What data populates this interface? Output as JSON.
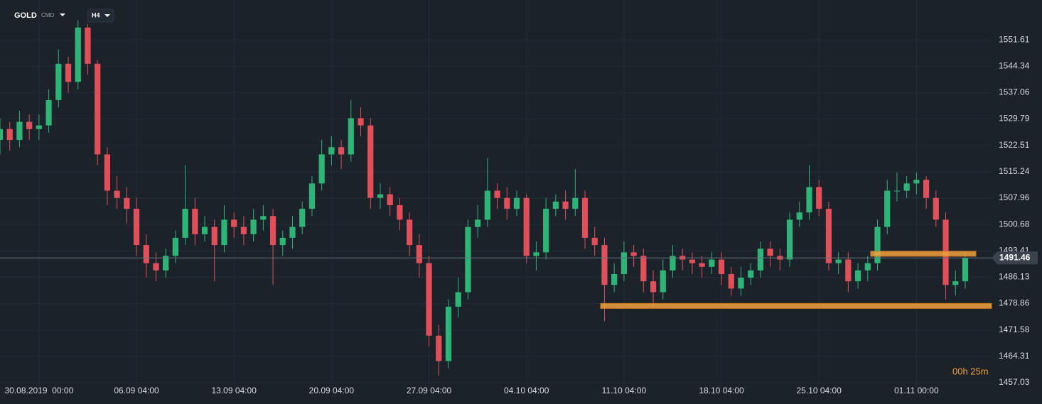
{
  "header": {
    "symbol": "GOLD",
    "symbol_type": "CMD",
    "timeframe": "H4"
  },
  "countdown": "00h 25m",
  "chart_data": {
    "type": "candlestick",
    "open": [
      1524,
      1527,
      1524,
      1529,
      1527,
      1528,
      1535,
      1545,
      1540,
      1555,
      1545,
      1520,
      1510,
      1508,
      1505,
      1495,
      1490,
      1488,
      1492,
      1497,
      1505,
      1498,
      1500,
      1495,
      1502,
      1500,
      1498,
      1502,
      1503,
      1495,
      1497,
      1500,
      1505,
      1512,
      1520,
      1522,
      1520,
      1530,
      1528,
      1508,
      1509,
      1506,
      1502,
      1495,
      1490,
      1470,
      1463,
      1478,
      1482,
      1500,
      1502,
      1510,
      1508,
      1505,
      1508,
      1492,
      1493,
      1505,
      1507,
      1505,
      1508,
      1497,
      1495,
      1484,
      1487,
      1493,
      1492,
      1485,
      1482,
      1488,
      1492,
      1491,
      1490,
      1489,
      1491,
      1487,
      1483,
      1486,
      1488,
      1494,
      1492,
      1491,
      1502,
      1504,
      1511,
      1505,
      1490,
      1491,
      1485,
      1488,
      1490,
      1500,
      1510,
      1510,
      1512,
      1513,
      1508,
      1502,
      1484,
      1485
    ],
    "high": [
      1530,
      1529,
      1532,
      1531,
      1531,
      1538,
      1549,
      1547,
      1557,
      1556,
      1546,
      1522,
      1514,
      1511,
      1508,
      1498,
      1493,
      1494,
      1499,
      1517,
      1508,
      1503,
      1502,
      1506,
      1504,
      1503,
      1505,
      1506,
      1505,
      1499,
      1503,
      1507,
      1514,
      1524,
      1525,
      1524,
      1535,
      1533,
      1530,
      1512,
      1511,
      1508,
      1504,
      1498,
      1492,
      1473,
      1480,
      1486,
      1502,
      1506,
      1519,
      1512,
      1511,
      1510,
      1509,
      1496,
      1508,
      1509,
      1510,
      1516,
      1510,
      1500,
      1497,
      1490,
      1496,
      1495,
      1494,
      1488,
      1491,
      1495,
      1494,
      1493,
      1492,
      1493,
      1493,
      1489,
      1489,
      1490,
      1496,
      1496,
      1494,
      1504,
      1507,
      1517,
      1513,
      1507,
      1493,
      1493,
      1490,
      1492,
      1502,
      1513,
      1515,
      1514,
      1515,
      1514,
      1510,
      1504,
      1488,
      1493
    ],
    "low": [
      1520,
      1521,
      1522,
      1524,
      1524,
      1526,
      1533,
      1537,
      1538,
      1542,
      1517,
      1506,
      1505,
      1501,
      1492,
      1486,
      1485,
      1486,
      1490,
      1495,
      1495,
      1496,
      1485,
      1493,
      1497,
      1495,
      1496,
      1499,
      1484,
      1492,
      1494,
      1498,
      1503,
      1510,
      1517,
      1516,
      1518,
      1525,
      1505,
      1505,
      1503,
      1499,
      1492,
      1486,
      1467,
      1459,
      1461,
      1475,
      1480,
      1497,
      1500,
      1505,
      1502,
      1503,
      1490,
      1488,
      1491,
      1503,
      1502,
      1503,
      1494,
      1492,
      1474,
      1482,
      1485,
      1489,
      1482,
      1478,
      1480,
      1486,
      1488,
      1487,
      1486,
      1487,
      1484,
      1481,
      1481,
      1484,
      1486,
      1489,
      1488,
      1489,
      1500,
      1502,
      1503,
      1488,
      1487,
      1482,
      1483,
      1485,
      1488,
      1498,
      1507,
      1508,
      1509,
      1505,
      1500,
      1480,
      1481,
      1483
    ],
    "close": [
      1527,
      1524,
      1529,
      1527,
      1528,
      1535,
      1545,
      1540,
      1555,
      1545,
      1520,
      1510,
      1508,
      1505,
      1495,
      1490,
      1488,
      1492,
      1497,
      1505,
      1498,
      1500,
      1495,
      1502,
      1500,
      1498,
      1502,
      1503,
      1495,
      1497,
      1500,
      1505,
      1512,
      1520,
      1522,
      1520,
      1530,
      1528,
      1508,
      1509,
      1506,
      1502,
      1495,
      1490,
      1470,
      1463,
      1478,
      1482,
      1500,
      1502,
      1510,
      1508,
      1505,
      1508,
      1492,
      1493,
      1505,
      1507,
      1505,
      1508,
      1497,
      1495,
      1484,
      1487,
      1493,
      1492,
      1485,
      1482,
      1488,
      1492,
      1491,
      1490,
      1489,
      1491,
      1487,
      1483,
      1486,
      1488,
      1494,
      1492,
      1491,
      1502,
      1504,
      1511,
      1505,
      1490,
      1491,
      1485,
      1488,
      1490,
      1500,
      1510,
      1510,
      1512,
      1513,
      1508,
      1502,
      1484,
      1485,
      1491.46
    ],
    "up_color": "#2fb477",
    "down_color": "#e0505a",
    "levels": [
      {
        "value": 1478.2,
        "x": [
          61.6,
          101.7
        ]
      },
      {
        "value": 1492.6,
        "x": [
          89.3,
          100.1
        ]
      }
    ],
    "level_color": "#f0a040",
    "xlim": [
      0,
      101.7
    ],
    "xticks": [
      {
        "value": 4,
        "label": "30.08.2019  00:00"
      },
      {
        "value": 14,
        "label": "06.09 04:00"
      },
      {
        "value": 24,
        "label": "13.09 04:00"
      },
      {
        "value": 34,
        "label": "20.09 04:00"
      },
      {
        "value": 44,
        "label": "27.09 04:00"
      },
      {
        "value": 54,
        "label": "04.10 04:00"
      },
      {
        "value": 64,
        "label": "11.10 04:00"
      },
      {
        "value": 74,
        "label": "18.10 04:00"
      },
      {
        "value": 84,
        "label": "25.10 04:00"
      },
      {
        "value": 94,
        "label": "01.11 00:00"
      }
    ],
    "ylim": [
      1455.85,
      1562.6
    ],
    "yticks": [
      1551.61,
      1544.34,
      1537.06,
      1529.79,
      1522.51,
      1515.24,
      1507.96,
      1500.68,
      1493.41,
      1486.13,
      1478.86,
      1471.58,
      1464.31,
      1457.03
    ],
    "grid": true
  }
}
